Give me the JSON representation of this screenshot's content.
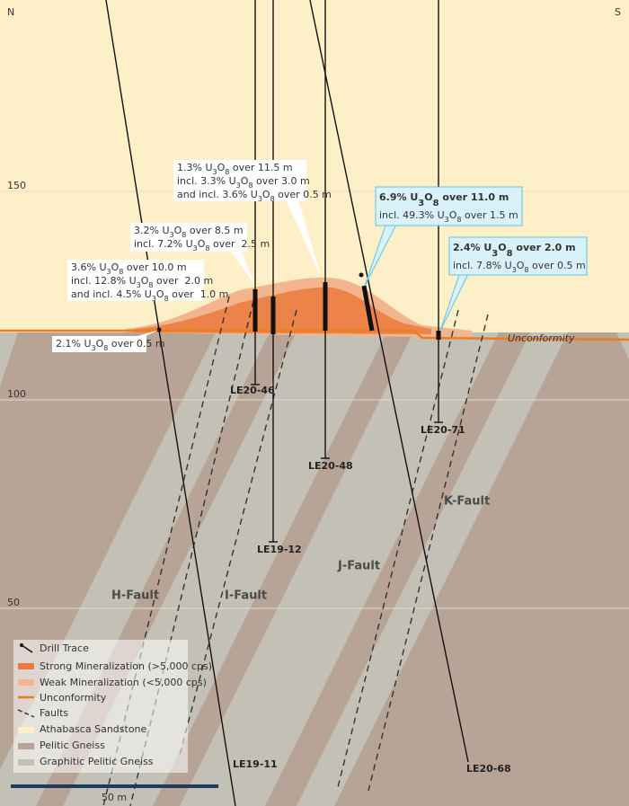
{
  "compass": {
    "north": "N",
    "south": "S"
  },
  "elevations": [
    150,
    100,
    50
  ],
  "annotations": [
    {
      "lines": [
        [
          "1.3% U",
          "3",
          "O",
          "8",
          " over 11.5 m"
        ],
        [
          "incl. 3.3% U",
          "3",
          "O",
          "8",
          " over 3.0 m"
        ],
        [
          "and incl. 3.6% U",
          "3",
          "O",
          "8",
          " over 0.5 m"
        ]
      ]
    },
    {
      "lines": [
        [
          "3.2% U",
          "3",
          "O",
          "8",
          " over 8.5 m"
        ],
        [
          "incl. 7.2% U",
          "3",
          "O",
          "8",
          " over  2.5 m"
        ]
      ]
    },
    {
      "lines": [
        [
          "3.6% U",
          "3",
          "O",
          "8",
          " over 10.0 m"
        ],
        [
          "incl. 12.8% U",
          "3",
          "O",
          "8",
          " over  2.0 m"
        ],
        [
          "and incl. 4.5% U",
          "3",
          "O",
          "8",
          " over  1.0 m"
        ]
      ]
    },
    {
      "lines": [
        [
          "2.1% U",
          "3",
          "O",
          "8",
          " over 0.5 m"
        ]
      ]
    },
    {
      "lines": [
        [
          "6.9% U",
          "3",
          "O",
          "8",
          " over 11.0 m"
        ],
        [
          "incl. 49.3% U",
          "3",
          "O",
          "8",
          " over 1.5 m"
        ]
      ]
    },
    {
      "lines": [
        [
          "2.4% U",
          "3",
          "O",
          "8",
          " over 2.0 m"
        ],
        [
          "incl. 7.8% U",
          "3",
          "O",
          "8",
          " over 0.5 m"
        ]
      ]
    }
  ],
  "holes": [
    "LE20-46",
    "LE19-12",
    "LE20-48",
    "LE20-71",
    "LE19-11",
    "LE20-68"
  ],
  "faults": [
    "H-Fault",
    "I-Fault",
    "J-Fault",
    "K-Fault"
  ],
  "unconformity": "Unconformity",
  "legend": [
    "Drill Trace",
    "Strong Mineralization (>5,000 cps)",
    "Weak Mineralization (<5,000 cps)",
    "Unconformity",
    "Faults",
    "Athabasca Sandstone",
    "Pelitic Gneiss",
    "Graphitic Pelitic Gneiss"
  ],
  "scale": "50 m"
}
